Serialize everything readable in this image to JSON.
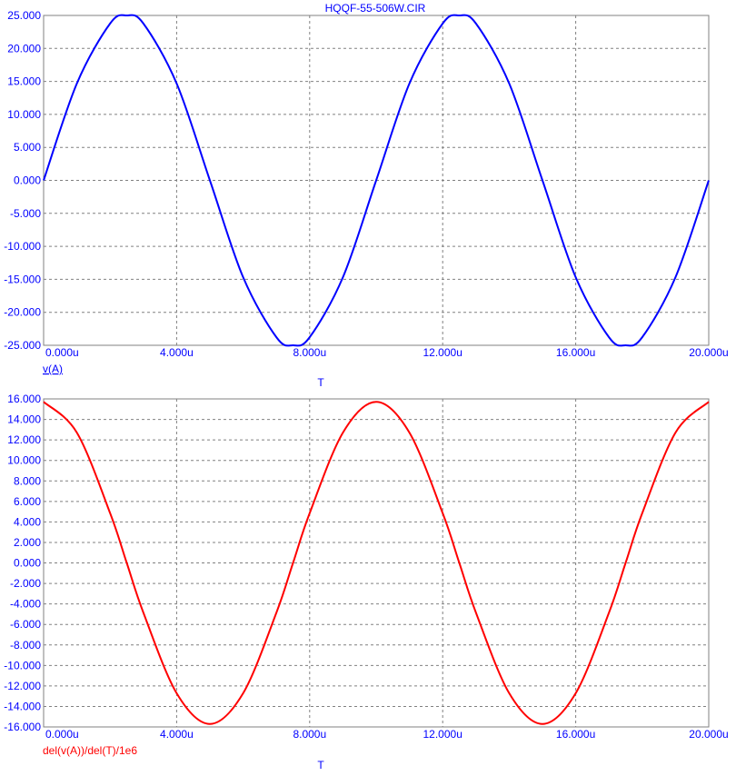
{
  "header": {
    "title": "HQQF-55-506W.CIR"
  },
  "colors": {
    "axis_text": "#0000ff",
    "grid": "#808080",
    "frame": "#808080",
    "series_top": "#0000ff",
    "series_bottom": "#ff0000"
  },
  "chart_data": [
    {
      "type": "line",
      "title": "HQQF-55-506W.CIR",
      "xlabel": "T",
      "ylabel": "",
      "xlim": [
        0,
        20
      ],
      "ylim": [
        -25,
        25
      ],
      "xticks": [
        "0.000u",
        "4.000u",
        "8.000u",
        "12.000u",
        "16.000u",
        "20.000u"
      ],
      "yticks": [
        "25.000",
        "20.000",
        "15.000",
        "10.000",
        "5.000",
        "0.000",
        "-5.000",
        "-10.000",
        "-15.000",
        "-20.000",
        "-25.000"
      ],
      "grid": true,
      "legend_position": "bottom-left",
      "series": [
        {
          "name": "v(A)",
          "color": "#0000ff",
          "x": [
            0,
            1,
            2,
            2.5,
            3,
            4,
            5,
            6,
            7,
            7.5,
            8,
            9,
            10,
            11,
            12,
            12.5,
            13,
            14,
            15,
            16,
            17,
            17.5,
            18,
            19,
            20
          ],
          "y": [
            0,
            14.69,
            23.78,
            25.0,
            23.78,
            14.69,
            0,
            -14.69,
            -23.78,
            -25.0,
            -23.78,
            -14.69,
            0,
            14.69,
            23.78,
            25.0,
            23.78,
            14.69,
            0,
            -14.69,
            -23.78,
            -25.0,
            -23.78,
            -14.69,
            0
          ]
        }
      ]
    },
    {
      "type": "line",
      "title": "",
      "xlabel": "T",
      "ylabel": "",
      "xlim": [
        0,
        20
      ],
      "ylim": [
        -16,
        16
      ],
      "xticks": [
        "0.000u",
        "4.000u",
        "8.000u",
        "12.000u",
        "16.000u",
        "20.000u"
      ],
      "yticks": [
        "16.000",
        "14.000",
        "12.000",
        "10.000",
        "8.000",
        "6.000",
        "4.000",
        "2.000",
        "0.000",
        "-2.000",
        "-4.000",
        "-6.000",
        "-8.000",
        "-10.000",
        "-12.000",
        "-14.000",
        "-16.000"
      ],
      "grid": true,
      "legend_position": "bottom-left",
      "series": [
        {
          "name": "del(v(A))/del(T)/1e6",
          "color": "#ff0000",
          "x": [
            0,
            1,
            2,
            2.5,
            3,
            4,
            5,
            6,
            7,
            7.5,
            8,
            9,
            10,
            11,
            12,
            12.5,
            13,
            14,
            15,
            16,
            17,
            17.5,
            18,
            19,
            20
          ],
          "y": [
            15.71,
            12.71,
            4.85,
            0,
            -4.85,
            -12.71,
            -15.71,
            -12.71,
            -4.85,
            0,
            4.85,
            12.71,
            15.71,
            12.71,
            4.85,
            0,
            -4.85,
            -12.71,
            -15.71,
            -12.71,
            -4.85,
            0,
            4.85,
            12.71,
            15.71
          ]
        }
      ]
    }
  ]
}
